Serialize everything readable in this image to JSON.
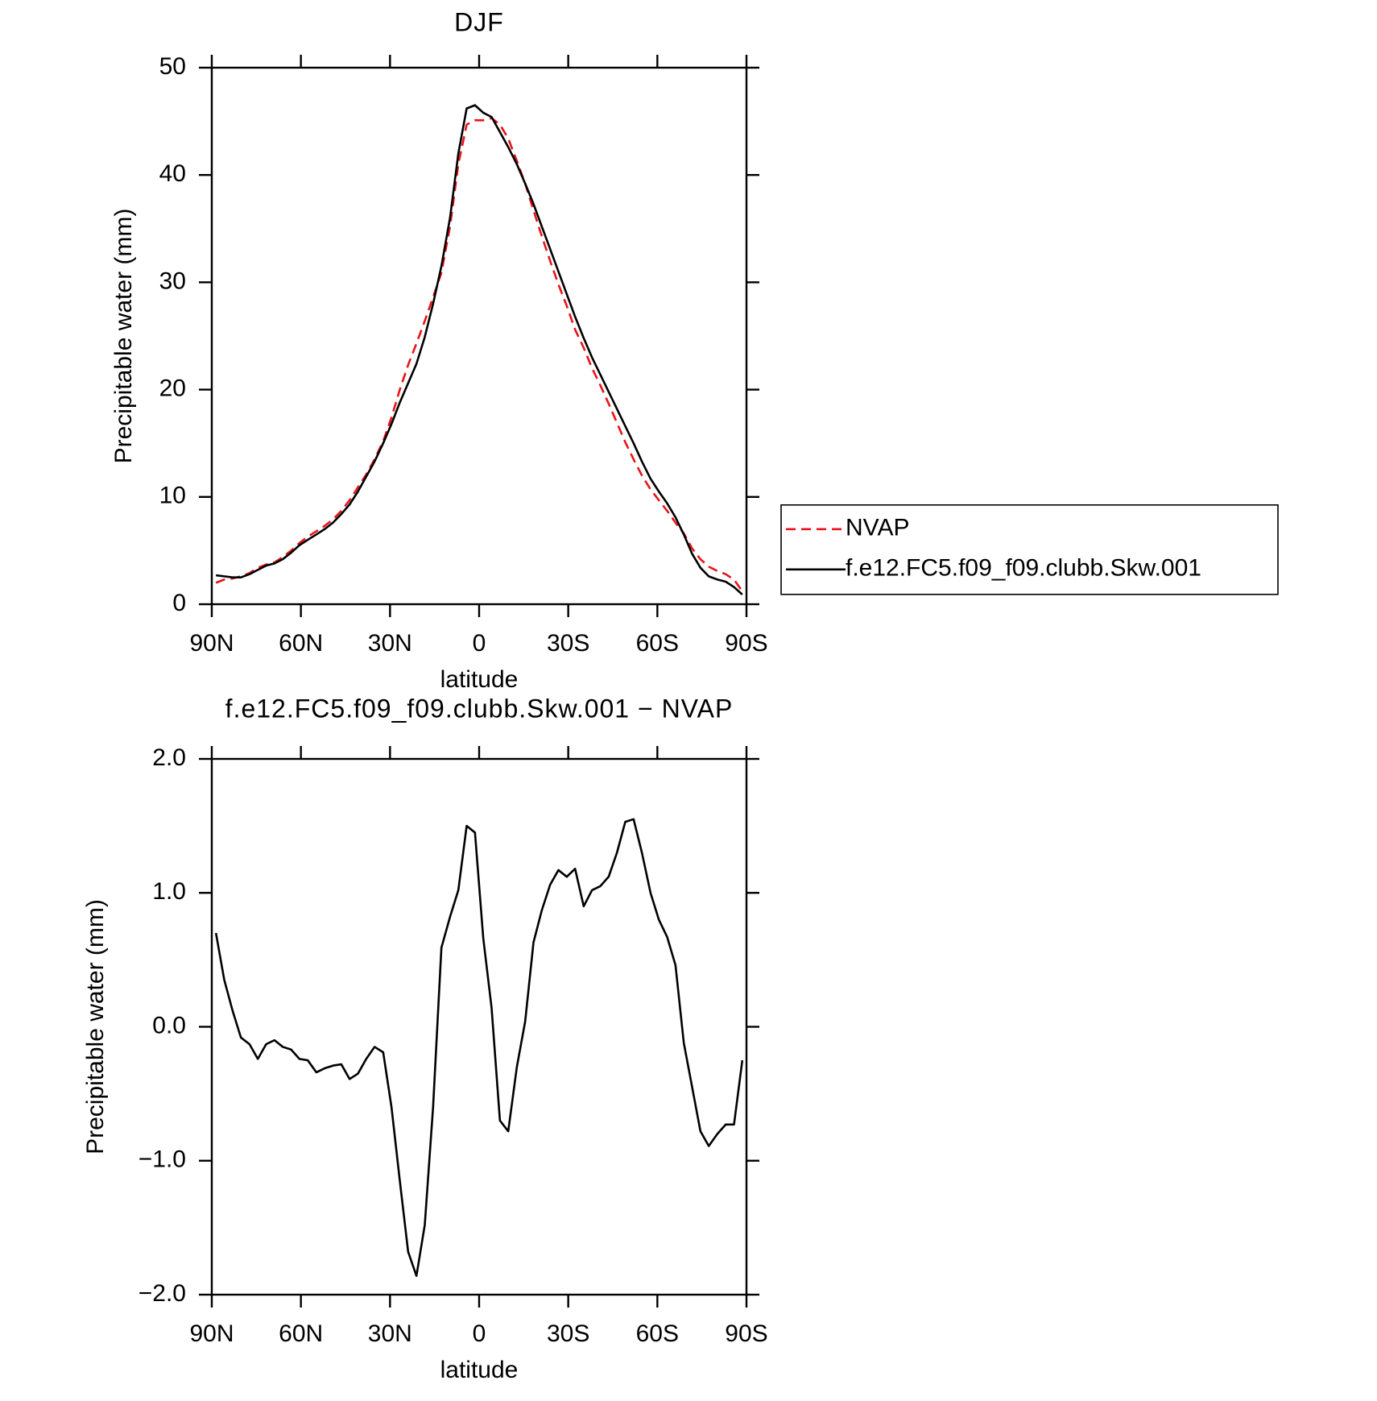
{
  "chart_data": [
    {
      "type": "line",
      "title": "DJF",
      "xlabel": "latitude",
      "ylabel": "Precipitable water (mm)",
      "x": [
        88.6,
        85.8,
        83.0,
        80.2,
        77.3,
        74.5,
        71.7,
        68.9,
        66.1,
        63.3,
        60.5,
        57.7,
        54.8,
        52.0,
        49.2,
        46.4,
        43.6,
        40.8,
        38.0,
        35.2,
        32.3,
        29.5,
        26.7,
        23.9,
        21.1,
        18.3,
        15.5,
        12.7,
        9.8,
        7.0,
        4.2,
        1.4,
        -1.4,
        -4.2,
        -7.0,
        -9.8,
        -12.7,
        -15.5,
        -18.3,
        -21.1,
        -23.9,
        -26.7,
        -29.5,
        -32.3,
        -35.2,
        -38.0,
        -40.8,
        -43.6,
        -46.4,
        -49.2,
        -52.0,
        -54.8,
        -57.7,
        -60.5,
        -63.3,
        -66.1,
        -68.9,
        -71.7,
        -74.5,
        -77.3,
        -80.2,
        -83.0,
        -85.8,
        -88.6
      ],
      "series": [
        {
          "name": "NVAP",
          "color": "#e8141a",
          "line_style": "dashed",
          "values": [
            2.0,
            2.3,
            2.4,
            2.6,
            2.9,
            3.4,
            3.7,
            3.9,
            4.4,
            5.0,
            5.7,
            6.3,
            6.8,
            7.3,
            7.9,
            8.7,
            9.7,
            10.9,
            12.1,
            13.5,
            15.2,
            17.4,
            20.0,
            22.3,
            24.3,
            26.4,
            28.6,
            30.9,
            35.2,
            41.0,
            44.7,
            45.1,
            45.1,
            45.3,
            44.7,
            43.4,
            41.3,
            39.2,
            36.7,
            34.3,
            32.0,
            29.8,
            27.8,
            25.6,
            23.9,
            22.0,
            20.4,
            18.7,
            16.9,
            15.1,
            13.5,
            12.0,
            10.7,
            9.7,
            8.7,
            7.6,
            6.6,
            5.2,
            4.2,
            3.5,
            3.1,
            2.8,
            2.3,
            1.2
          ]
        },
        {
          "name": "f.e12.FC5.f09_f09.clubb.Skw.001",
          "color": "#000000",
          "line_style": "solid",
          "values": [
            2.7,
            2.6,
            2.5,
            2.5,
            2.8,
            3.2,
            3.6,
            3.8,
            4.2,
            4.8,
            5.5,
            6.0,
            6.5,
            7.0,
            7.6,
            8.4,
            9.3,
            10.5,
            11.9,
            13.3,
            15.0,
            16.8,
            18.8,
            20.6,
            22.4,
            24.9,
            28.0,
            31.5,
            36.0,
            42.0,
            46.2,
            46.5,
            45.8,
            45.4,
            44.0,
            42.6,
            41.0,
            39.2,
            37.3,
            35.2,
            33.1,
            31.0,
            28.9,
            26.8,
            24.8,
            23.0,
            21.4,
            19.8,
            18.2,
            16.6,
            15.0,
            13.3,
            11.7,
            10.5,
            9.4,
            8.1,
            6.5,
            4.7,
            3.4,
            2.6,
            2.3,
            2.1,
            1.6,
            0.9
          ]
        }
      ],
      "legend": "right",
      "xlim": [
        90,
        -90
      ],
      "xticks": [
        {
          "value": 90,
          "label": "90N"
        },
        {
          "value": 60,
          "label": "60N"
        },
        {
          "value": 30,
          "label": "30N"
        },
        0,
        {
          "value": -30,
          "label": "30S"
        },
        {
          "value": -60,
          "label": "60S"
        },
        {
          "value": -90,
          "label": "90S"
        }
      ],
      "ylim": [
        0,
        50
      ],
      "yticks": [
        0,
        10,
        20,
        30,
        40,
        50
      ],
      "grid": false
    },
    {
      "type": "line",
      "title": "f.e12.FC5.f09_f09.clubb.Skw.001 − NVAP",
      "xlabel": "latitude",
      "ylabel": "Precipitable water (mm)",
      "x": [
        88.6,
        85.8,
        83.0,
        80.2,
        77.3,
        74.5,
        71.7,
        68.9,
        66.1,
        63.3,
        60.5,
        57.7,
        54.8,
        52.0,
        49.2,
        46.4,
        43.6,
        40.8,
        38.0,
        35.2,
        32.3,
        29.5,
        26.7,
        23.9,
        21.1,
        18.3,
        15.5,
        12.7,
        9.8,
        7.0,
        4.2,
        1.4,
        -1.4,
        -4.2,
        -7.0,
        -9.8,
        -12.7,
        -15.5,
        -18.3,
        -21.1,
        -23.9,
        -26.7,
        -29.5,
        -32.3,
        -35.2,
        -38.0,
        -40.8,
        -43.6,
        -46.4,
        -49.2,
        -52.0,
        -54.8,
        -57.7,
        -60.5,
        -63.3,
        -66.1,
        -68.9,
        -71.7,
        -74.5,
        -77.3,
        -80.2,
        -83.0,
        -85.8,
        -88.6
      ],
      "values": [
        0.7,
        0.35,
        0.12,
        -0.08,
        -0.13,
        -0.24,
        -0.13,
        -0.1,
        -0.15,
        -0.17,
        -0.24,
        -0.25,
        -0.34,
        -0.31,
        -0.29,
        -0.28,
        -0.39,
        -0.35,
        -0.24,
        -0.15,
        -0.19,
        -0.6,
        -1.15,
        -1.68,
        -1.86,
        -1.48,
        -0.6,
        0.59,
        0.82,
        1.02,
        1.5,
        1.45,
        0.66,
        0.14,
        -0.7,
        -0.78,
        -0.3,
        0.04,
        0.63,
        0.87,
        1.06,
        1.17,
        1.12,
        1.18,
        0.9,
        1.02,
        1.05,
        1.12,
        1.3,
        1.53,
        1.55,
        1.3,
        1.0,
        0.8,
        0.67,
        0.46,
        -0.12,
        -0.45,
        -0.78,
        -0.89,
        -0.8,
        -0.73,
        -0.73,
        -0.25
      ],
      "color": "#000000",
      "xlim": [
        90,
        -90
      ],
      "xticks": [
        {
          "value": 90,
          "label": "90N"
        },
        {
          "value": 60,
          "label": "60N"
        },
        {
          "value": 30,
          "label": "30N"
        },
        0,
        {
          "value": -30,
          "label": "30S"
        },
        {
          "value": -60,
          "label": "60S"
        },
        {
          "value": -90,
          "label": "90S"
        }
      ],
      "ylim": [
        -2,
        2
      ],
      "yticks": [
        {
          "value": -2,
          "label": "−2.0"
        },
        {
          "value": -1,
          "label": "−1.0"
        },
        {
          "value": 0,
          "label": "0.0"
        },
        {
          "value": 1,
          "label": "1.0"
        },
        {
          "value": 2,
          "label": "2.0"
        }
      ],
      "grid": false
    }
  ]
}
